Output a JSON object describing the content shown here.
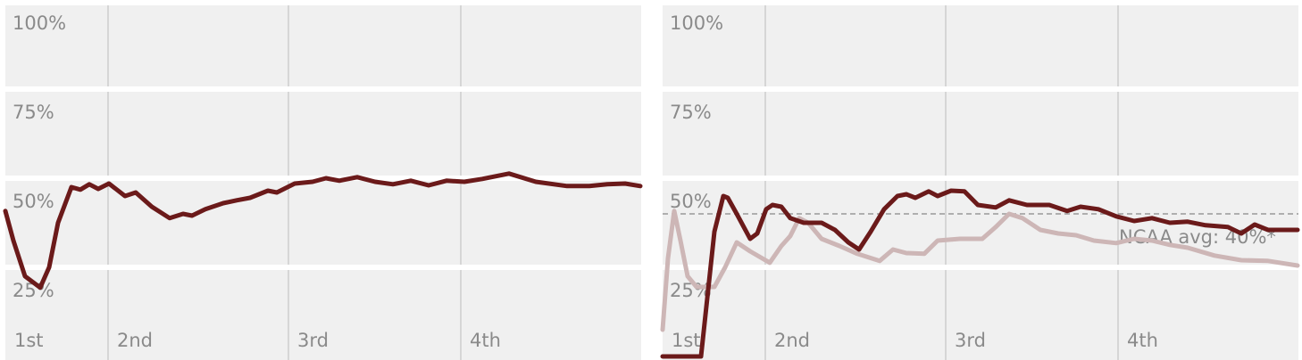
{
  "chart_data": [
    {
      "type": "line",
      "xlim": [
        0,
        712
      ],
      "ylim": [
        -1,
        100
      ],
      "grid": true,
      "xticks": [
        {
          "value": 0,
          "label": "1st"
        },
        {
          "value": 115,
          "label": "2nd"
        },
        {
          "value": 317,
          "label": "3rd"
        },
        {
          "value": 510,
          "label": "4th"
        }
      ],
      "yticks": [
        {
          "value": 100,
          "label": "100%"
        },
        {
          "value": 75,
          "label": "75%"
        },
        {
          "value": 50,
          "label": "50%"
        },
        {
          "value": 25,
          "label": "25%"
        }
      ],
      "series": [
        {
          "color": "#6b1a1a",
          "x": [
            0,
            9,
            22,
            39,
            49,
            59,
            74,
            84,
            94,
            104,
            116,
            134,
            146,
            164,
            184,
            199,
            209,
            224,
            244,
            259,
            274,
            294,
            304,
            324,
            344,
            359,
            374,
            394,
            414,
            434,
            454,
            474,
            494,
            514,
            534,
            564,
            594,
            629,
            654,
            674,
            694,
            711
          ],
          "values": [
            40.8,
            32.5,
            22.5,
            19.3,
            25,
            37.5,
            47.5,
            46.8,
            48.3,
            47,
            48.5,
            45,
            46,
            42,
            38.8,
            40,
            39.5,
            41.3,
            43,
            43.8,
            44.5,
            46.5,
            46,
            48.5,
            49,
            50,
            49.3,
            50.3,
            49,
            48.3,
            49.3,
            48,
            49.3,
            49,
            49.8,
            51.3,
            49,
            47.8,
            47.8,
            48.3,
            48.5,
            47.8
          ]
        }
      ]
    },
    {
      "type": "line",
      "xlim": [
        0,
        712
      ],
      "ylim": [
        -1,
        100
      ],
      "grid": true,
      "xticks": [
        {
          "value": 0,
          "label": "1st"
        },
        {
          "value": 115,
          "label": "2nd"
        },
        {
          "value": 317,
          "label": "3rd"
        },
        {
          "value": 510,
          "label": "4th"
        }
      ],
      "yticks": [
        {
          "value": 100,
          "label": "100%"
        },
        {
          "value": 75,
          "label": "75%"
        },
        {
          "value": 50,
          "label": "50%"
        },
        {
          "value": 25,
          "label": "25%"
        }
      ],
      "reference_line": {
        "value": 40,
        "label": "NCAA avg: 40%*"
      },
      "series": [
        {
          "color": "#cdb6b6",
          "x": [
            0,
            6,
            13,
            20,
            28,
            38,
            58,
            70,
            83,
            98,
            120,
            133,
            143,
            153,
            163,
            178,
            198,
            218,
            243,
            258,
            273,
            293,
            308,
            333,
            358,
            373,
            388,
            403,
            423,
            443,
            463,
            483,
            508,
            528,
            548,
            568,
            588,
            618,
            648,
            678,
            711
          ],
          "values": [
            7.5,
            27.5,
            40.8,
            32.5,
            22.5,
            19.5,
            19.5,
            25,
            32,
            29.5,
            26.3,
            31,
            33.8,
            38.8,
            37.5,
            33,
            31,
            28.8,
            26.8,
            30,
            29,
            28.8,
            32.5,
            33,
            33,
            36.3,
            40,
            38.8,
            35.5,
            34.5,
            34,
            32.5,
            31.8,
            33,
            32.5,
            31.3,
            30.5,
            28.3,
            27,
            26.8,
            25.5
          ]
        },
        {
          "color": "#6b1a1a",
          "x": [
            0,
            43,
            58,
            68,
            73,
            83,
            98,
            106,
            116,
            123,
            133,
            143,
            158,
            178,
            193,
            208,
            220,
            233,
            248,
            263,
            273,
            283,
            298,
            308,
            323,
            338,
            353,
            373,
            388,
            408,
            433,
            453,
            468,
            488,
            508,
            528,
            548,
            568,
            588,
            608,
            633,
            648,
            663,
            678,
            711
          ],
          "values": [
            0,
            0,
            35,
            45,
            44.5,
            40,
            33,
            34.5,
            41.3,
            42.5,
            42,
            38.8,
            37.5,
            37.5,
            35.5,
            32,
            30,
            35,
            41.3,
            45,
            45.5,
            44.5,
            46.3,
            45,
            46.5,
            46.3,
            42.5,
            41.8,
            43.8,
            42.5,
            42.5,
            40.8,
            42,
            41.3,
            39.3,
            38,
            38.8,
            37.5,
            37.8,
            36.8,
            36.3,
            34.5,
            37,
            35.5,
            35.5
          ]
        }
      ]
    }
  ]
}
